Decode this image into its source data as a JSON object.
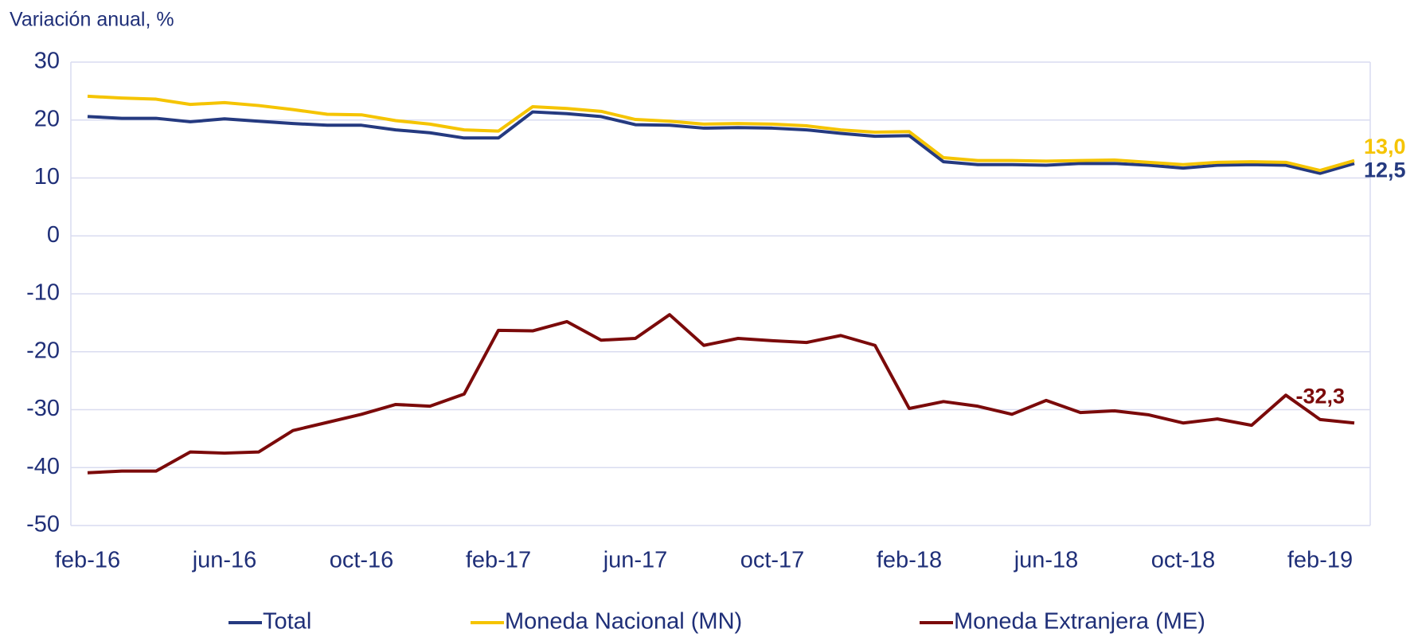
{
  "chart_data": {
    "type": "line",
    "y_label": "Variación anual, %",
    "categories": [
      "feb-16",
      null,
      null,
      null,
      "jun-16",
      null,
      null,
      null,
      "oct-16",
      null,
      null,
      null,
      "feb-17",
      null,
      null,
      null,
      "jun-17",
      null,
      null,
      null,
      "oct-17",
      null,
      null,
      null,
      "feb-18",
      null,
      null,
      null,
      "jun-18",
      null,
      null,
      null,
      "oct-18",
      null,
      null,
      null,
      "feb-19",
      null
    ],
    "series": [
      {
        "name": "Total",
        "color": "#253a80",
        "values": [
          20.6,
          20.3,
          20.3,
          19.7,
          20.2,
          19.8,
          19.4,
          19.1,
          19.1,
          18.3,
          17.8,
          16.9,
          16.9,
          21.4,
          21.1,
          20.6,
          19.2,
          19.1,
          18.6,
          18.7,
          18.6,
          18.3,
          17.7,
          17.2,
          17.3,
          12.8,
          12.3,
          12.3,
          12.2,
          12.5,
          12.5,
          12.2,
          11.7,
          12.2,
          12.3,
          12.2,
          10.8,
          12.5
        ],
        "value_labels": [
          null,
          null,
          null,
          null,
          null,
          null,
          null,
          null,
          null,
          null,
          null,
          null,
          null,
          null,
          null,
          null,
          null,
          null,
          null,
          null,
          null,
          null,
          null,
          null,
          null,
          null,
          null,
          null,
          null,
          null,
          null,
          null,
          null,
          null,
          null,
          null,
          null,
          "12,5"
        ]
      },
      {
        "name": "Moneda Nacional (MN)",
        "color": "#f5c400",
        "values": [
          24.1,
          23.8,
          23.6,
          22.7,
          23.0,
          22.5,
          21.8,
          21.0,
          20.9,
          19.9,
          19.3,
          18.3,
          18.1,
          22.3,
          22.0,
          21.5,
          20.1,
          19.8,
          19.3,
          19.4,
          19.3,
          19.0,
          18.3,
          17.9,
          18.0,
          13.5,
          13.0,
          13.0,
          12.9,
          13.0,
          13.1,
          12.7,
          12.3,
          12.7,
          12.8,
          12.7,
          11.3,
          13.0
        ],
        "value_labels": [
          null,
          null,
          null,
          null,
          null,
          null,
          null,
          null,
          null,
          null,
          null,
          null,
          null,
          null,
          null,
          null,
          null,
          null,
          null,
          null,
          null,
          null,
          null,
          null,
          null,
          null,
          null,
          null,
          null,
          null,
          null,
          null,
          null,
          null,
          null,
          null,
          null,
          "13,0"
        ]
      },
      {
        "name": "Moneda Extranjera (ME)",
        "color": "#7b0a0a",
        "values": [
          -40.9,
          -40.6,
          -40.6,
          -37.3,
          -37.5,
          -37.3,
          -33.6,
          -32.2,
          -30.8,
          -29.1,
          -29.4,
          -27.3,
          -16.3,
          -16.4,
          -14.8,
          -18.0,
          -17.7,
          -13.6,
          -18.9,
          -17.7,
          -18.1,
          -18.4,
          -17.2,
          -18.9,
          -29.8,
          -28.6,
          -29.4,
          -30.8,
          -28.4,
          -30.5,
          -30.2,
          -30.9,
          -32.3,
          -31.6,
          -32.7,
          -27.5,
          -31.7,
          -32.3
        ],
        "value_labels": [
          null,
          null,
          null,
          null,
          null,
          null,
          null,
          null,
          null,
          null,
          null,
          null,
          null,
          null,
          null,
          null,
          null,
          null,
          null,
          null,
          null,
          null,
          null,
          null,
          null,
          null,
          null,
          null,
          null,
          null,
          null,
          null,
          null,
          null,
          null,
          null,
          null,
          "-32,3"
        ]
      }
    ],
    "ylim": [
      -50,
      30
    ],
    "yticks": [
      -50,
      -40,
      -30,
      -20,
      -10,
      0,
      10,
      20,
      30
    ],
    "grid": true,
    "legend": "bottom"
  }
}
